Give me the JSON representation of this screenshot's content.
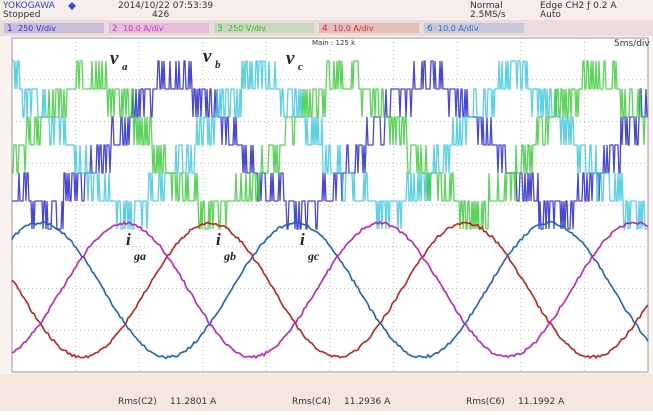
{
  "header": {
    "brand": "YOKOGAWA",
    "status": "Stopped",
    "datetime": "2014/10/22 07:53:39",
    "count": "426",
    "mode": "Normal",
    "sample_rate": "2.5MS/s",
    "trigger": "Edge CH2 ƒ 0.2 A",
    "trigger_mode": "Auto"
  },
  "channels": [
    {
      "num": "1",
      "scale": "250 V/div",
      "color": "#3030d0"
    },
    {
      "num": "2",
      "scale": "10.0 A/div",
      "color": "#d030d0"
    },
    {
      "num": "3",
      "scale": "250 V/div",
      "color": "#30c030"
    },
    {
      "num": "4",
      "scale": "10.0 A/div",
      "color": "#d03030"
    },
    {
      "num": "6",
      "scale": "10.0 A/div",
      "color": "#3070d0"
    }
  ],
  "screen": {
    "main": "Main : 125 k",
    "timebase": "5ms/div"
  },
  "labels": {
    "va": {
      "base": "v",
      "sub": "a"
    },
    "vb": {
      "base": "v",
      "sub": "b"
    },
    "vc": {
      "base": "v",
      "sub": "c"
    },
    "iga": {
      "base": "i",
      "sub": "ga"
    },
    "igb": {
      "base": "i",
      "sub": "gb"
    },
    "igc": {
      "base": "i",
      "sub": "gc"
    }
  },
  "measurements": [
    {
      "name": "Rms(C2)",
      "value": "11.2801 A"
    },
    {
      "name": "Rms(C4)",
      "value": "11.2936 A"
    },
    {
      "name": "Rms(C6)",
      "value": "11.1992 A"
    }
  ]
}
